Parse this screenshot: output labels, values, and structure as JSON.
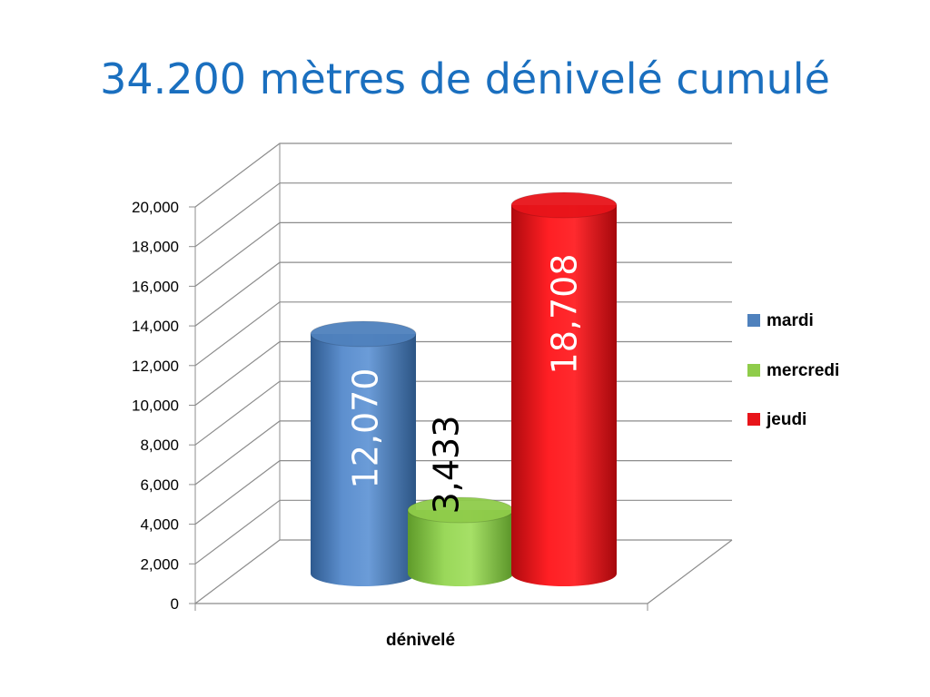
{
  "title": "34.200 mètres de dénivelé cumulé",
  "colors": {
    "title": "#1a6fbf",
    "grid": "#8c8c8c"
  },
  "chart_data": {
    "type": "bar",
    "style": "3d-cylinder",
    "categories": [
      "dénivelé"
    ],
    "series": [
      {
        "name": "mardi",
        "values": [
          12070
        ],
        "label": "12,070",
        "color": "#4f81bd",
        "label_color": "#ffffff"
      },
      {
        "name": "mercredi",
        "values": [
          3433
        ],
        "label": "3,433",
        "color": "#8fcc4a",
        "label_color": "#000000"
      },
      {
        "name": "jeudi",
        "values": [
          18708
        ],
        "label": "18,708",
        "color": "#e8141a",
        "label_color": "#ffffff"
      }
    ],
    "yticks": [
      "0",
      "2,000",
      "4,000",
      "6,000",
      "8,000",
      "10,000",
      "12,000",
      "14,000",
      "16,000",
      "18,000",
      "20,000"
    ],
    "ylim": [
      0,
      20000
    ],
    "grid": true,
    "legend": "right"
  }
}
